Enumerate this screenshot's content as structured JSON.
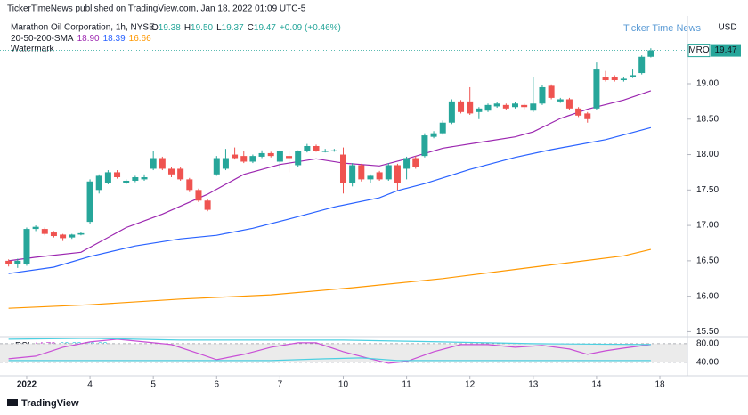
{
  "chart_data": {
    "type": "candlestick",
    "header": "TickerTimeNews published on TradingView.com, Jan 18, 2022 01:09 UTC-5",
    "title": "Marathon Oil Corporation, 1h, NYSE",
    "quote_labels": [
      "O",
      "H",
      "L",
      "C"
    ],
    "quote_values": [
      "19.38",
      "19.50",
      "19.37",
      "19.47"
    ],
    "change": "+0.09 (+0.46%)",
    "indicator": {
      "name": "20-50-200-SMA",
      "values": [
        "18.90",
        "18.39",
        "16.66"
      ]
    },
    "watermark_label": "Watermark",
    "watermark": "Ticker Time News",
    "currency": "USD",
    "symbol": "MRO",
    "last_price": {
      "value": 19.47,
      "label": "19.47"
    },
    "brand": "TradingView",
    "up_color": "#26a69a",
    "down_color": "#ef5350",
    "xlim": [
      -0.95,
      75.05
    ],
    "xticks": [
      {
        "value": 2,
        "label": "2022"
      },
      {
        "value": 9,
        "label": "4"
      },
      {
        "value": 16,
        "label": "5"
      },
      {
        "value": 23,
        "label": "6"
      },
      {
        "value": 30,
        "label": "7"
      },
      {
        "value": 37,
        "label": "10"
      },
      {
        "value": 44,
        "label": "11"
      },
      {
        "value": 51,
        "label": "12"
      },
      {
        "value": 58,
        "label": "13"
      },
      {
        "value": 65,
        "label": "14"
      },
      {
        "value": 72,
        "label": "18"
      }
    ],
    "ylim": [
      15.43,
      19.93
    ],
    "yticks": [
      {
        "value": 19,
        "label": "19.00"
      },
      {
        "value": 18.5,
        "label": "18.50"
      },
      {
        "value": 18,
        "label": "18.00"
      },
      {
        "value": 17.5,
        "label": "17.50"
      },
      {
        "value": 17,
        "label": "17.00"
      },
      {
        "value": 16.5,
        "label": "16.50"
      },
      {
        "value": 16,
        "label": "16.00"
      },
      {
        "value": 15.5,
        "label": "15.50"
      }
    ],
    "grid": false,
    "ohlc": [
      [
        16.5,
        16.52,
        16.42,
        16.45
      ],
      [
        16.45,
        16.53,
        16.4,
        16.5
      ],
      [
        16.45,
        16.97,
        16.43,
        16.95
      ],
      [
        16.95,
        17.0,
        16.92,
        16.98
      ],
      [
        16.95,
        16.97,
        16.86,
        16.88
      ],
      [
        16.9,
        16.92,
        16.83,
        16.85
      ],
      [
        16.87,
        16.88,
        16.78,
        16.82
      ],
      [
        16.83,
        16.88,
        16.81,
        16.87
      ],
      [
        16.87,
        16.9,
        16.86,
        16.89
      ],
      [
        17.05,
        17.65,
        17.02,
        17.62
      ],
      [
        17.5,
        17.72,
        17.45,
        17.7
      ],
      [
        17.6,
        17.78,
        17.58,
        17.75
      ],
      [
        17.75,
        17.78,
        17.66,
        17.68
      ],
      [
        17.6,
        17.65,
        17.58,
        17.63
      ],
      [
        17.63,
        17.7,
        17.61,
        17.68
      ],
      [
        17.65,
        17.72,
        17.63,
        17.68
      ],
      [
        17.8,
        18.05,
        17.78,
        17.95
      ],
      [
        17.95,
        17.97,
        17.78,
        17.8
      ],
      [
        17.8,
        17.83,
        17.68,
        17.72
      ],
      [
        17.8,
        17.82,
        17.63,
        17.65
      ],
      [
        17.65,
        17.67,
        17.47,
        17.5
      ],
      [
        17.5,
        17.52,
        17.33,
        17.35
      ],
      [
        17.35,
        17.37,
        17.2,
        17.22
      ],
      [
        17.72,
        17.98,
        17.7,
        17.95
      ],
      [
        17.8,
        18.08,
        17.78,
        17.95
      ],
      [
        18.0,
        18.1,
        17.93,
        17.95
      ],
      [
        17.98,
        18.05,
        17.88,
        17.9
      ],
      [
        17.9,
        18.0,
        17.88,
        17.98
      ],
      [
        17.97,
        18.06,
        17.95,
        18.02
      ],
      [
        18.02,
        18.04,
        17.96,
        17.98
      ],
      [
        17.9,
        18.06,
        17.8,
        18.05
      ],
      [
        17.98,
        18.05,
        17.75,
        17.95
      ],
      [
        17.85,
        18.06,
        17.83,
        18.05
      ],
      [
        18.05,
        18.15,
        18.03,
        18.12
      ],
      [
        18.12,
        18.14,
        18.04,
        18.05
      ],
      [
        18.05,
        18.08,
        18.03,
        18.05
      ],
      [
        18.05,
        18.08,
        18.04,
        18.06
      ],
      [
        18.0,
        18.1,
        17.45,
        17.6
      ],
      [
        17.6,
        17.88,
        17.55,
        17.85
      ],
      [
        17.85,
        17.87,
        17.62,
        17.65
      ],
      [
        17.65,
        17.72,
        17.6,
        17.7
      ],
      [
        17.75,
        17.77,
        17.63,
        17.65
      ],
      [
        17.65,
        17.88,
        17.63,
        17.85
      ],
      [
        17.85,
        17.87,
        17.5,
        17.6
      ],
      [
        17.8,
        17.97,
        17.65,
        17.95
      ],
      [
        17.95,
        17.98,
        17.8,
        17.82
      ],
      [
        17.98,
        18.3,
        17.96,
        18.27
      ],
      [
        18.25,
        18.33,
        18.23,
        18.3
      ],
      [
        18.3,
        18.48,
        18.28,
        18.45
      ],
      [
        18.45,
        18.78,
        18.43,
        18.75
      ],
      [
        18.75,
        18.77,
        18.58,
        18.6
      ],
      [
        18.75,
        18.95,
        18.56,
        18.58
      ],
      [
        18.6,
        18.67,
        18.5,
        18.65
      ],
      [
        18.62,
        18.72,
        18.6,
        18.7
      ],
      [
        18.68,
        18.74,
        18.66,
        18.72
      ],
      [
        18.7,
        18.72,
        18.63,
        18.65
      ],
      [
        18.67,
        18.74,
        18.65,
        18.72
      ],
      [
        18.7,
        18.72,
        18.64,
        18.67
      ],
      [
        18.62,
        19.1,
        18.6,
        18.72
      ],
      [
        18.72,
        18.98,
        18.7,
        18.95
      ],
      [
        18.97,
        18.99,
        18.78,
        18.8
      ],
      [
        18.75,
        18.8,
        18.73,
        18.78
      ],
      [
        18.78,
        18.8,
        18.63,
        18.65
      ],
      [
        18.65,
        18.67,
        18.53,
        18.55
      ],
      [
        18.58,
        18.6,
        18.45,
        18.5
      ],
      [
        18.65,
        19.3,
        18.63,
        19.2
      ],
      [
        19.1,
        19.18,
        19.03,
        19.05
      ],
      [
        19.1,
        19.12,
        19.03,
        19.05
      ],
      [
        19.05,
        19.1,
        19.03,
        19.07
      ],
      [
        19.1,
        19.2,
        19.08,
        19.12
      ],
      [
        19.15,
        19.4,
        19.13,
        19.38
      ],
      [
        19.38,
        19.5,
        19.37,
        19.47
      ]
    ],
    "series": [
      {
        "color": "#9c27b0",
        "x": [
          0,
          3,
          8,
          13,
          17,
          22,
          26,
          30,
          34,
          37,
          41,
          44,
          48,
          52,
          56,
          58,
          61,
          64,
          68,
          71
        ],
        "values": [
          16.5,
          16.55,
          16.62,
          16.97,
          17.16,
          17.44,
          17.72,
          17.86,
          17.94,
          17.88,
          17.84,
          17.94,
          18.09,
          18.17,
          18.25,
          18.32,
          18.51,
          18.64,
          18.77,
          18.9
        ]
      },
      {
        "color": "#2962ff",
        "x": [
          0,
          5,
          9,
          14,
          19,
          23,
          27,
          31,
          36,
          41,
          43,
          46,
          51,
          56,
          60,
          66,
          71
        ],
        "values": [
          16.32,
          16.41,
          16.56,
          16.71,
          16.81,
          16.86,
          16.96,
          17.09,
          17.26,
          17.39,
          17.49,
          17.59,
          17.79,
          17.96,
          18.07,
          18.21,
          18.38
        ]
      },
      {
        "color": "#ff9800",
        "x": [
          0,
          9,
          19,
          29,
          38,
          48,
          58,
          68,
          71
        ],
        "values": [
          15.83,
          15.88,
          15.96,
          16.02,
          16.12,
          16.25,
          16.41,
          16.57,
          16.66
        ]
      }
    ],
    "rsi": {
      "name": "cRSI",
      "values_text": [
        "44.70",
        "69.32",
        "70.02"
      ],
      "ylim": [
        15,
        95
      ],
      "yticks": [
        {
          "value": 80,
          "label": "80.00"
        },
        {
          "value": 40,
          "label": "40.00"
        }
      ],
      "band_color": "#ebebeb",
      "series": [
        {
          "color": "#c94fd6",
          "x": [
            0,
            3,
            6,
            9,
            12,
            15,
            18,
            21,
            23,
            26,
            29,
            32,
            34,
            37,
            40,
            42,
            44,
            47,
            50,
            53,
            56,
            59,
            62,
            64,
            66,
            68,
            71
          ],
          "values": [
            47.6,
            53.3,
            72.4,
            83.8,
            89.5,
            83.8,
            78.1,
            59,
            45.7,
            57.1,
            72.4,
            81.9,
            81.9,
            62.9,
            47.6,
            38.1,
            41.9,
            62.9,
            78.1,
            78.1,
            72.4,
            76.2,
            68.6,
            57.1,
            64.8,
            70.5,
            78.1
          ]
        },
        {
          "color": "#4dd0e1",
          "x": [
            0,
            9,
            19,
            37,
            48,
            58,
            71
          ],
          "values": [
            89.5,
            91.4,
            87.6,
            87.6,
            83.8,
            80,
            78.1
          ]
        },
        {
          "color": "#4dd0e1",
          "x": [
            0,
            29,
            35,
            39,
            43,
            71
          ],
          "values": [
            43.8,
            43.8,
            47.6,
            49.5,
            43.8,
            43.8
          ]
        }
      ]
    }
  }
}
